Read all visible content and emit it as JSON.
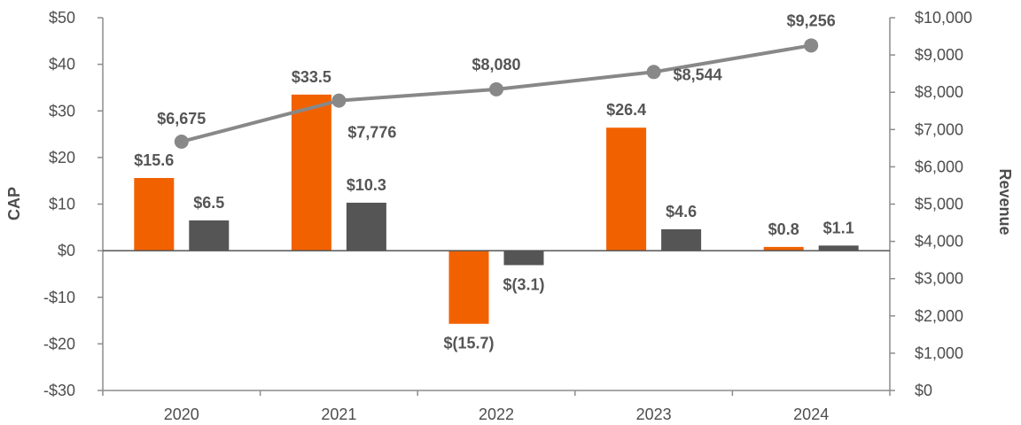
{
  "chart_data": {
    "type": "bar+line",
    "categories": [
      "2020",
      "2021",
      "2022",
      "2023",
      "2024"
    ],
    "left_axis": {
      "label": "CAP",
      "ylim": [
        -30,
        50
      ],
      "ticks": [
        -30,
        -20,
        -10,
        0,
        10,
        20,
        30,
        40,
        50
      ],
      "tick_labels": [
        "-$30",
        "-$20",
        "-$10",
        "$0",
        "$10",
        "$20",
        "$30",
        "$40",
        "$50"
      ]
    },
    "right_axis": {
      "label": "Revenue",
      "ylim": [
        0,
        10000
      ],
      "ticks": [
        0,
        1000,
        2000,
        3000,
        4000,
        5000,
        6000,
        7000,
        8000,
        9000,
        10000
      ],
      "tick_labels": [
        "$0",
        "$1,000",
        "$2,000",
        "$3,000",
        "$4,000",
        "$5,000",
        "$6,000",
        "$7,000",
        "$8,000",
        "$9,000",
        "$10,000"
      ]
    },
    "bar_series": [
      {
        "name": "series-orange",
        "color": "#f26100",
        "values": [
          15.6,
          33.5,
          -15.7,
          26.4,
          0.8
        ],
        "labels": [
          "$15.6",
          "$33.5",
          "$(15.7)",
          "$26.4",
          "$0.8"
        ]
      },
      {
        "name": "series-gray",
        "color": "#555555",
        "values": [
          6.5,
          10.3,
          -3.1,
          4.6,
          1.1
        ],
        "labels": [
          "$6.5",
          "$10.3",
          "$(3.1)",
          "$4.6",
          "$1.1"
        ]
      }
    ],
    "line_series": {
      "name": "revenue",
      "color": "#888888",
      "axis": "right",
      "values": [
        6675,
        7776,
        8080,
        8544,
        9256
      ],
      "labels": [
        "$6,675",
        "$7,776",
        "$8,080",
        "$8,544",
        "$9,256"
      ]
    },
    "legend": "none",
    "grid": false
  }
}
